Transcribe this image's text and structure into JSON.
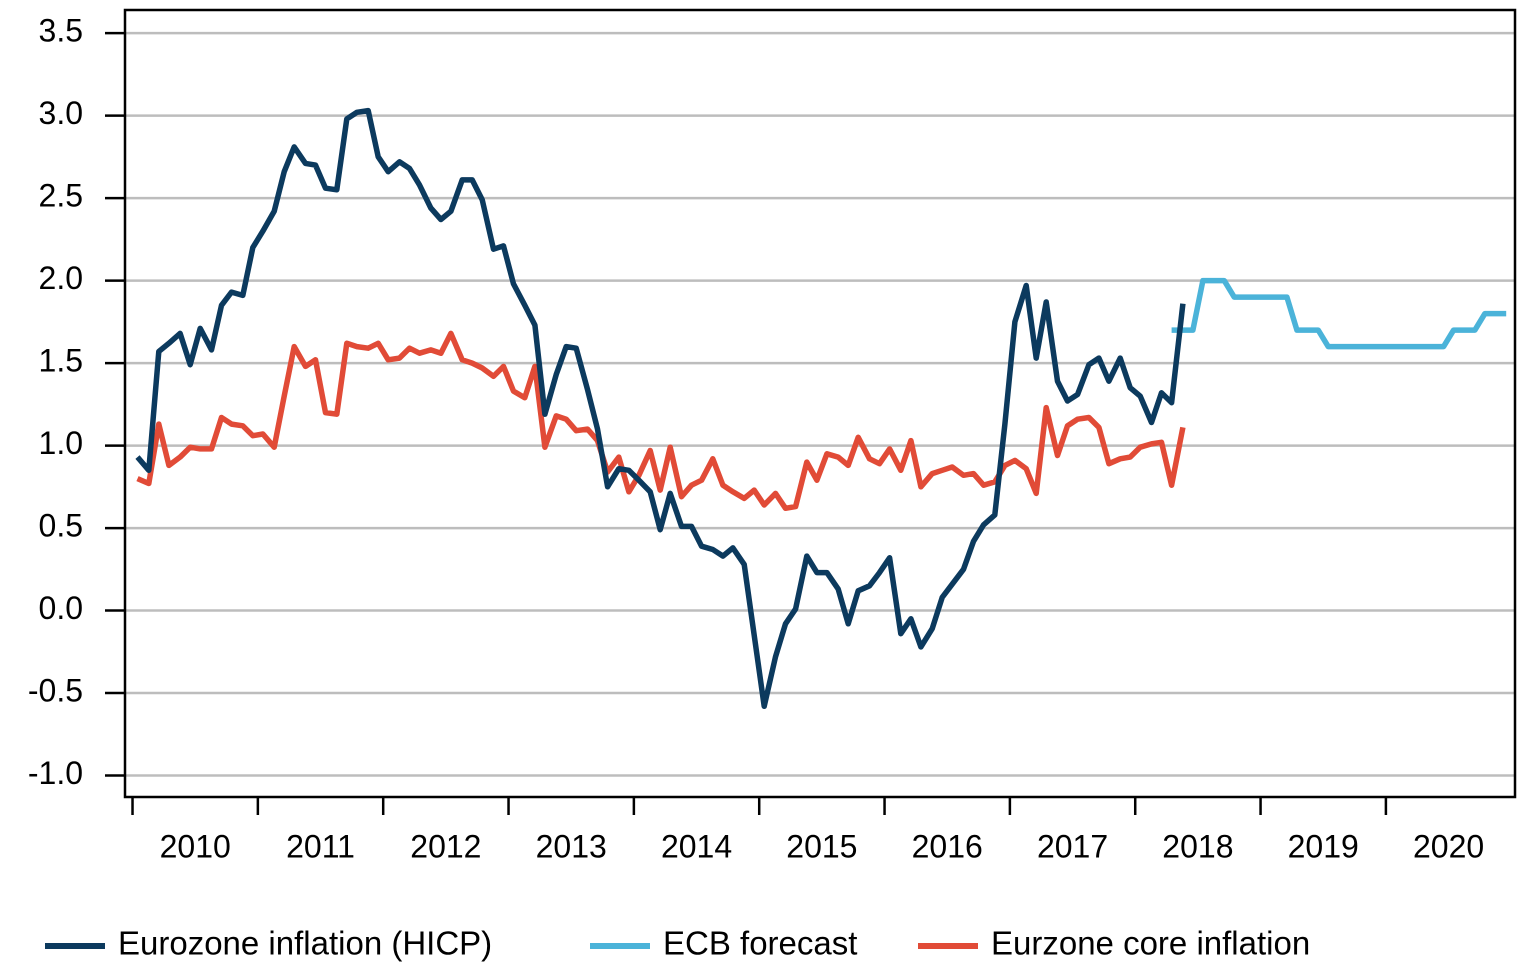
{
  "chart_data": {
    "type": "line",
    "xlim": [
      2009.94,
      2021.03
    ],
    "xticks": [
      {
        "value": 2010,
        "label": "2010"
      },
      {
        "value": 2011,
        "label": "2011"
      },
      {
        "value": 2012,
        "label": "2012"
      },
      {
        "value": 2013,
        "label": "2013"
      },
      {
        "value": 2014,
        "label": "2014"
      },
      {
        "value": 2015,
        "label": "2015"
      },
      {
        "value": 2016,
        "label": "2016"
      },
      {
        "value": 2017,
        "label": "2017"
      },
      {
        "value": 2018,
        "label": "2018"
      },
      {
        "value": 2019,
        "label": "2019"
      },
      {
        "value": 2020,
        "label": "2020"
      }
    ],
    "ylim": [
      -1.13,
      3.64
    ],
    "yticks": [
      {
        "value": -1,
        "label": "-1.0"
      },
      -0.5,
      {
        "value": 0,
        "label": "0.0"
      },
      0.5,
      {
        "value": 1,
        "label": "1.0"
      },
      1.5,
      {
        "value": 2,
        "label": "2.0"
      },
      2.5,
      {
        "value": 3,
        "label": "3.0"
      },
      3.5
    ],
    "grid": true,
    "legend": "bottom",
    "series": [
      {
        "name": "Eurozone inflation (HICP)",
        "color": "#0c3a5e",
        "x": [
          2010.04,
          2010.13,
          2010.21,
          2010.29,
          2010.38,
          2010.46,
          2010.54,
          2010.63,
          2010.71,
          2010.79,
          2010.88,
          2010.96,
          2011.04,
          2011.13,
          2011.21,
          2011.29,
          2011.38,
          2011.46,
          2011.54,
          2011.63,
          2011.71,
          2011.79,
          2011.88,
          2011.96,
          2012.04,
          2012.13,
          2012.21,
          2012.29,
          2012.38,
          2012.46,
          2012.54,
          2012.63,
          2012.71,
          2012.79,
          2012.88,
          2012.96,
          2013.04,
          2013.13,
          2013.21,
          2013.29,
          2013.38,
          2013.46,
          2013.54,
          2013.63,
          2013.71,
          2013.79,
          2013.88,
          2013.96,
          2014.04,
          2014.13,
          2014.21,
          2014.29,
          2014.38,
          2014.46,
          2014.54,
          2014.63,
          2014.71,
          2014.79,
          2014.88,
          2014.96,
          2015.04,
          2015.13,
          2015.21,
          2015.29,
          2015.38,
          2015.46,
          2015.54,
          2015.63,
          2015.71,
          2015.79,
          2015.88,
          2015.96,
          2016.04,
          2016.13,
          2016.21,
          2016.29,
          2016.38,
          2016.46,
          2016.54,
          2016.63,
          2016.71,
          2016.79,
          2016.88,
          2016.96,
          2017.04,
          2017.13,
          2017.21,
          2017.29,
          2017.38,
          2017.46,
          2017.54,
          2017.63,
          2017.71,
          2017.79,
          2017.88,
          2017.96,
          2018.04,
          2018.13,
          2018.21,
          2018.29,
          2018.38
        ],
        "values": [
          0.93,
          0.85,
          1.57,
          1.62,
          1.68,
          1.49,
          1.71,
          1.58,
          1.85,
          1.93,
          1.91,
          2.2,
          2.3,
          2.42,
          2.66,
          2.81,
          2.71,
          2.7,
          2.56,
          2.55,
          2.98,
          3.02,
          3.03,
          2.75,
          2.66,
          2.72,
          2.68,
          2.58,
          2.44,
          2.37,
          2.42,
          2.61,
          2.61,
          2.49,
          2.19,
          2.21,
          1.98,
          1.85,
          1.73,
          1.19,
          1.43,
          1.6,
          1.59,
          1.34,
          1.1,
          0.75,
          0.86,
          0.85,
          0.79,
          0.72,
          0.49,
          0.71,
          0.51,
          0.51,
          0.39,
          0.37,
          0.33,
          0.38,
          0.28,
          -0.15,
          -0.58,
          -0.28,
          -0.08,
          0.01,
          0.33,
          0.23,
          0.23,
          0.13,
          -0.08,
          0.12,
          0.15,
          0.23,
          0.32,
          -0.14,
          -0.05,
          -0.22,
          -0.11,
          0.08,
          0.16,
          0.25,
          0.42,
          0.52,
          0.58,
          1.13,
          1.75,
          1.97,
          1.53,
          1.87,
          1.39,
          1.27,
          1.31,
          1.49,
          1.53,
          1.39,
          1.53,
          1.35,
          1.3,
          1.14,
          1.32,
          1.26,
          1.86
        ]
      },
      {
        "name": "ECB forecast",
        "color": "#4bb3d9",
        "x": [
          2018.29,
          2018.38,
          2018.46,
          2018.54,
          2018.63,
          2018.71,
          2018.79,
          2018.88,
          2018.96,
          2019.04,
          2019.13,
          2019.21,
          2019.29,
          2019.38,
          2019.46,
          2019.54,
          2019.63,
          2019.71,
          2019.79,
          2019.88,
          2019.96,
          2020.04,
          2020.13,
          2020.21,
          2020.29,
          2020.38,
          2020.46,
          2020.54,
          2020.63,
          2020.71,
          2020.79,
          2020.88,
          2020.96
        ],
        "values": [
          1.7,
          1.7,
          1.7,
          2.0,
          2.0,
          2.0,
          1.9,
          1.9,
          1.9,
          1.9,
          1.9,
          1.9,
          1.7,
          1.7,
          1.7,
          1.6,
          1.6,
          1.6,
          1.6,
          1.6,
          1.6,
          1.6,
          1.6,
          1.6,
          1.6,
          1.6,
          1.6,
          1.7,
          1.7,
          1.7,
          1.8,
          1.8,
          1.8
        ]
      },
      {
        "name": "Eurzone core inflation",
        "color": "#e14b37",
        "x": [
          2010.04,
          2010.13,
          2010.21,
          2010.29,
          2010.38,
          2010.46,
          2010.54,
          2010.63,
          2010.71,
          2010.79,
          2010.88,
          2010.96,
          2011.04,
          2011.13,
          2011.21,
          2011.29,
          2011.38,
          2011.46,
          2011.54,
          2011.63,
          2011.71,
          2011.79,
          2011.88,
          2011.96,
          2012.04,
          2012.13,
          2012.21,
          2012.29,
          2012.38,
          2012.46,
          2012.54,
          2012.63,
          2012.71,
          2012.79,
          2012.88,
          2012.96,
          2013.04,
          2013.13,
          2013.21,
          2013.29,
          2013.38,
          2013.46,
          2013.54,
          2013.63,
          2013.71,
          2013.79,
          2013.88,
          2013.96,
          2014.04,
          2014.13,
          2014.21,
          2014.29,
          2014.38,
          2014.46,
          2014.54,
          2014.63,
          2014.71,
          2014.79,
          2014.88,
          2014.96,
          2015.04,
          2015.13,
          2015.21,
          2015.29,
          2015.38,
          2015.46,
          2015.54,
          2015.63,
          2015.71,
          2015.79,
          2015.88,
          2015.96,
          2016.04,
          2016.13,
          2016.21,
          2016.29,
          2016.38,
          2016.46,
          2016.54,
          2016.63,
          2016.71,
          2016.79,
          2016.88,
          2016.96,
          2017.04,
          2017.13,
          2017.21,
          2017.29,
          2017.38,
          2017.46,
          2017.54,
          2017.63,
          2017.71,
          2017.79,
          2017.88,
          2017.96,
          2018.04,
          2018.13,
          2018.21,
          2018.29,
          2018.38
        ],
        "values": [
          0.8,
          0.77,
          1.13,
          0.88,
          0.93,
          0.99,
          0.98,
          0.98,
          1.17,
          1.13,
          1.12,
          1.06,
          1.07,
          0.99,
          1.3,
          1.6,
          1.48,
          1.52,
          1.2,
          1.19,
          1.62,
          1.6,
          1.59,
          1.62,
          1.52,
          1.53,
          1.59,
          1.56,
          1.58,
          1.56,
          1.68,
          1.52,
          1.5,
          1.47,
          1.42,
          1.48,
          1.33,
          1.29,
          1.48,
          0.99,
          1.18,
          1.16,
          1.09,
          1.1,
          1.03,
          0.84,
          0.93,
          0.72,
          0.82,
          0.97,
          0.73,
          0.99,
          0.69,
          0.76,
          0.79,
          0.92,
          0.76,
          0.72,
          0.68,
          0.73,
          0.64,
          0.71,
          0.62,
          0.63,
          0.9,
          0.79,
          0.95,
          0.93,
          0.88,
          1.05,
          0.92,
          0.89,
          0.98,
          0.85,
          1.03,
          0.75,
          0.83,
          0.85,
          0.87,
          0.82,
          0.83,
          0.76,
          0.78,
          0.88,
          0.91,
          0.86,
          0.71,
          1.23,
          0.94,
          1.12,
          1.16,
          1.17,
          1.11,
          0.89,
          0.92,
          0.93,
          0.99,
          1.01,
          1.02,
          0.76,
          1.11
        ]
      }
    ]
  }
}
